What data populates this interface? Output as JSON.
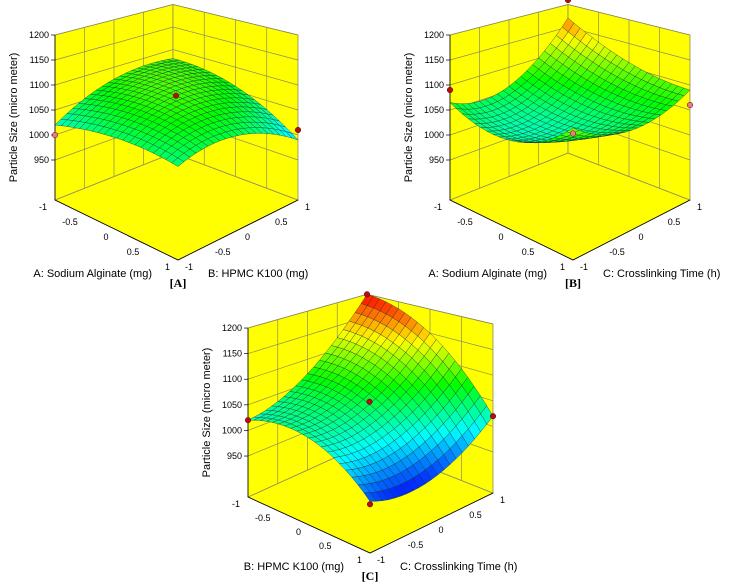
{
  "chart_data": [
    {
      "type": "surface",
      "panel_label": "[A]",
      "x_axis": {
        "title": "A: Sodium Alginate (mg)",
        "ticks": [
          "-1",
          "-0.5",
          "0",
          "0.5",
          "1"
        ],
        "range": [
          -1,
          1
        ]
      },
      "y_axis": {
        "title": "B: HPMC K100 (mg)",
        "ticks": [
          "-1",
          "-0.5",
          "0",
          "0.5",
          "1"
        ],
        "range": [
          -1,
          1
        ]
      },
      "z_axis": {
        "title": "Particle Size (micro meter)",
        "ticks": [
          "950",
          "1000",
          "1050",
          "1100",
          "1150",
          "1200"
        ],
        "range": [
          870,
          1200
        ]
      },
      "grid_levels": [
        -1,
        0,
        1
      ],
      "surface_values": [
        [
          1020,
          1075,
          1080
        ],
        [
          1045,
          1085,
          1060
        ],
        [
          1040,
          1050,
          990
        ]
      ],
      "design_points": [
        {
          "x": -1,
          "y": -1,
          "z": 1000,
          "color": "#e08080"
        },
        {
          "x": 1,
          "y": 1,
          "z": 1010,
          "color": "#b01010"
        },
        {
          "x": 0,
          "y": 0,
          "z": 1085,
          "color": "#b01010"
        }
      ]
    },
    {
      "type": "surface",
      "panel_label": "[B]",
      "x_axis": {
        "title": "A: Sodium Alginate (mg)",
        "ticks": [
          "-1",
          "-0.5",
          "0",
          "0.5",
          "1"
        ],
        "range": [
          -1,
          1
        ]
      },
      "y_axis": {
        "title": "C: Crosslinking Time (h)",
        "ticks": [
          "-1",
          "-0.5",
          "0",
          "0.5",
          "1"
        ],
        "range": [
          -1,
          1
        ]
      },
      "z_axis": {
        "title": "Particle Size (micro meter)",
        "ticks": [
          "950",
          "1000",
          "1050",
          "1100",
          "1150",
          "1200"
        ],
        "range": [
          870,
          1200
        ]
      },
      "grid_levels": [
        -1,
        0,
        1
      ],
      "surface_values": [
        [
          1065,
          1060,
          1170
        ],
        [
          1040,
          1035,
          1110
        ],
        [
          1110,
          1060,
          1090
        ]
      ],
      "design_points": [
        {
          "x": -1,
          "y": -1,
          "z": 1090,
          "color": "#b01010"
        },
        {
          "x": -1,
          "y": 1,
          "z": 1210,
          "color": "#b01010"
        },
        {
          "x": 1,
          "y": 1,
          "z": 1060,
          "color": "#e08080"
        },
        {
          "x": 1,
          "y": -1,
          "z": 1100,
          "color": "#e08080"
        }
      ]
    },
    {
      "type": "surface",
      "panel_label": "[C]",
      "x_axis": {
        "title": "B: HPMC K100 (mg)",
        "ticks": [
          "-1",
          "-0.5",
          "0",
          "0.5",
          "1"
        ],
        "range": [
          -1,
          1
        ]
      },
      "y_axis": {
        "title": "C: Crosslinking Time (h)",
        "ticks": [
          "-1",
          "-0.5",
          "0",
          "0.5",
          "1"
        ],
        "range": [
          -1,
          1
        ]
      },
      "z_axis": {
        "title": "Particle Size (micro meter)",
        "ticks": [
          "950",
          "1000",
          "1050",
          "1100",
          "1150",
          "1200"
        ],
        "range": [
          870,
          1200
        ]
      },
      "grid_levels": [
        -1,
        0,
        1
      ],
      "surface_values": [
        [
          1020,
          1070,
          1200
        ],
        [
          1030,
          1050,
          1150
        ],
        [
          960,
          950,
          1020
        ]
      ],
      "design_points": [
        {
          "x": -1,
          "y": -1,
          "z": 1020,
          "color": "#b01010"
        },
        {
          "x": -1,
          "y": 1,
          "z": 1200,
          "color": "#b01010"
        },
        {
          "x": 1,
          "y": 1,
          "z": 1020,
          "color": "#b01010"
        },
        {
          "x": 0,
          "y": 0,
          "z": 1055,
          "color": "#b01010"
        },
        {
          "x": 1,
          "y": -1,
          "z": 955,
          "color": "#b01010"
        }
      ]
    }
  ],
  "colors": {
    "wall": "#ffff00",
    "grid": "#8c8c5a",
    "mesh": "#1a2a3a"
  },
  "colormap": [
    "#0000ff",
    "#00ffff",
    "#00ff00",
    "#ffff00",
    "#ff0000"
  ]
}
